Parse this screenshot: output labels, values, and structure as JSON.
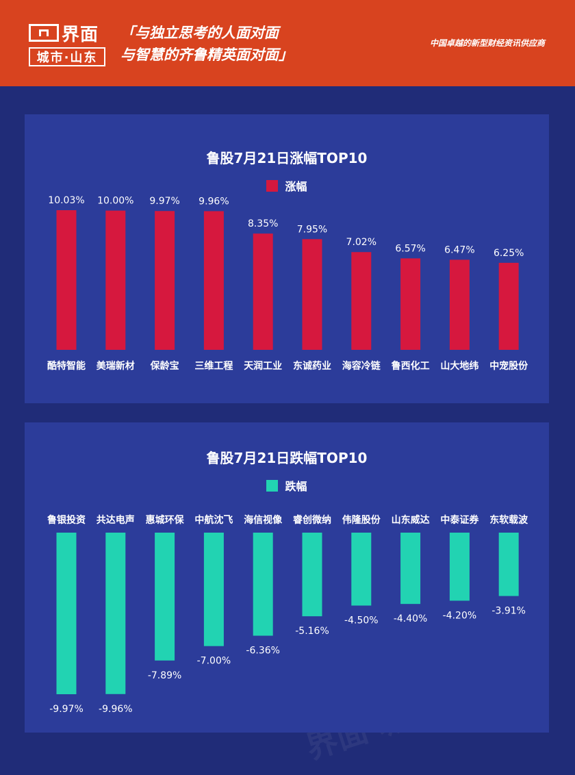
{
  "header": {
    "logo_name": "界面",
    "logo_sub": "城市·山东",
    "slogan_line1": "「与独立思考的人面对面",
    "slogan_line2": "与智慧的齐鲁精英面对面」",
    "tagline": "中国卓越的新型财经资讯供应商",
    "background_color": "#d8431f"
  },
  "watermark_text": "界面 城市·山东",
  "chart_data": [
    {
      "type": "bar",
      "title": "鲁股7月21日涨幅TOP10",
      "legend": "涨幅",
      "color": "#d6183e",
      "categories": [
        "酷特智能",
        "美瑞新材",
        "保龄宝",
        "三维工程",
        "天润工业",
        "东诚药业",
        "海容冷链",
        "鲁西化工",
        "山大地纬",
        "中宠股份"
      ],
      "values": [
        10.03,
        10.0,
        9.97,
        9.96,
        8.35,
        7.95,
        7.02,
        6.57,
        6.47,
        6.25
      ],
      "labels": [
        "10.03%",
        "10.00%",
        "9.97%",
        "9.96%",
        "8.35%",
        "7.95%",
        "7.02%",
        "6.57%",
        "6.47%",
        "6.25%"
      ]
    },
    {
      "type": "bar",
      "title": "鲁股7月21日跌幅TOP10",
      "legend": "跌幅",
      "color": "#22d3b2",
      "categories": [
        "鲁银投资",
        "共达电声",
        "惠城环保",
        "中航沈飞",
        "海信视像",
        "睿创微纳",
        "伟隆股份",
        "山东威达",
        "中泰证券",
        "东软载波"
      ],
      "values": [
        -9.97,
        -9.96,
        -7.89,
        -7.0,
        -6.36,
        -5.16,
        -4.5,
        -4.4,
        -4.2,
        -3.91
      ],
      "labels": [
        "-9.97%",
        "-9.96%",
        "-7.89%",
        "-7.00%",
        "-6.36%",
        "-5.16%",
        "-4.50%",
        "-4.40%",
        "-4.20%",
        "-3.91%"
      ]
    }
  ]
}
